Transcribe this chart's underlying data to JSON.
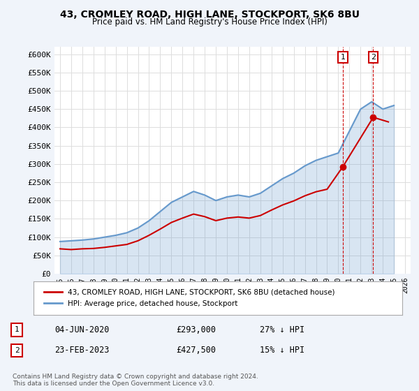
{
  "title": "43, CROMLEY ROAD, HIGH LANE, STOCKPORT, SK6 8BU",
  "subtitle": "Price paid vs. HM Land Registry's House Price Index (HPI)",
  "hpi_years": [
    1995,
    1996,
    1997,
    1998,
    1999,
    2000,
    2001,
    2002,
    2003,
    2004,
    2005,
    2006,
    2007,
    2008,
    2009,
    2010,
    2011,
    2012,
    2013,
    2014,
    2015,
    2016,
    2017,
    2018,
    2019,
    2020,
    2021,
    2022,
    2023,
    2024,
    2025
  ],
  "hpi_values": [
    88000,
    90000,
    92000,
    95000,
    100000,
    105000,
    112000,
    125000,
    145000,
    170000,
    195000,
    210000,
    225000,
    215000,
    200000,
    210000,
    215000,
    210000,
    220000,
    240000,
    260000,
    275000,
    295000,
    310000,
    320000,
    330000,
    390000,
    450000,
    470000,
    450000,
    460000
  ],
  "hpi_color": "#6699cc",
  "sale1_x": 2020.42,
  "sale1_y": 293000,
  "sale2_x": 2023.14,
  "sale2_y": 427500,
  "sale_color": "#cc0000",
  "sale_line_years": [
    1995,
    1996,
    1997,
    1998,
    1999,
    2000,
    2001,
    2002,
    2003,
    2004,
    2005,
    2006,
    2007,
    2008,
    2009,
    2010,
    2011,
    2012,
    2013,
    2014,
    2015,
    2016,
    2017,
    2018,
    2019,
    2020.42,
    2023.14,
    2024.5
  ],
  "sale_line_values": [
    68000,
    66000,
    68000,
    69000,
    72000,
    76000,
    80000,
    90000,
    105000,
    122000,
    140000,
    152000,
    163000,
    156000,
    145000,
    152000,
    155000,
    152000,
    159000,
    174000,
    188000,
    199000,
    213000,
    224000,
    231000,
    293000,
    427500,
    415000
  ],
  "ylim": [
    0,
    620000
  ],
  "yticks": [
    0,
    50000,
    100000,
    150000,
    200000,
    250000,
    300000,
    350000,
    400000,
    450000,
    500000,
    550000,
    600000
  ],
  "ytick_labels": [
    "£0",
    "£50K",
    "£100K",
    "£150K",
    "£200K",
    "£250K",
    "£300K",
    "£350K",
    "£400K",
    "£450K",
    "£500K",
    "£550K",
    "£600K"
  ],
  "xlim_start": 1994.5,
  "xlim_end": 2026.5,
  "xtick_years": [
    1995,
    1996,
    1997,
    1998,
    1999,
    2000,
    2001,
    2002,
    2003,
    2004,
    2005,
    2006,
    2007,
    2008,
    2009,
    2010,
    2011,
    2012,
    2013,
    2014,
    2015,
    2016,
    2017,
    2018,
    2019,
    2020,
    2021,
    2022,
    2023,
    2024,
    2025,
    2026
  ],
  "legend_label_red": "43, CROMLEY ROAD, HIGH LANE, STOCKPORT, SK6 8BU (detached house)",
  "legend_label_blue": "HPI: Average price, detached house, Stockport",
  "annotation1_label": "1",
  "annotation1_date": "04-JUN-2020",
  "annotation1_price": "£293,000",
  "annotation1_hpi": "27% ↓ HPI",
  "annotation2_label": "2",
  "annotation2_date": "23-FEB-2023",
  "annotation2_price": "£427,500",
  "annotation2_hpi": "15% ↓ HPI",
  "footnote": "Contains HM Land Registry data © Crown copyright and database right 2024.\nThis data is licensed under the Open Government Licence v3.0.",
  "bg_color": "#f0f4fa",
  "plot_bg_color": "#ffffff",
  "grid_color": "#dddddd",
  "vline_color": "#cc0000",
  "vline_style": "--"
}
